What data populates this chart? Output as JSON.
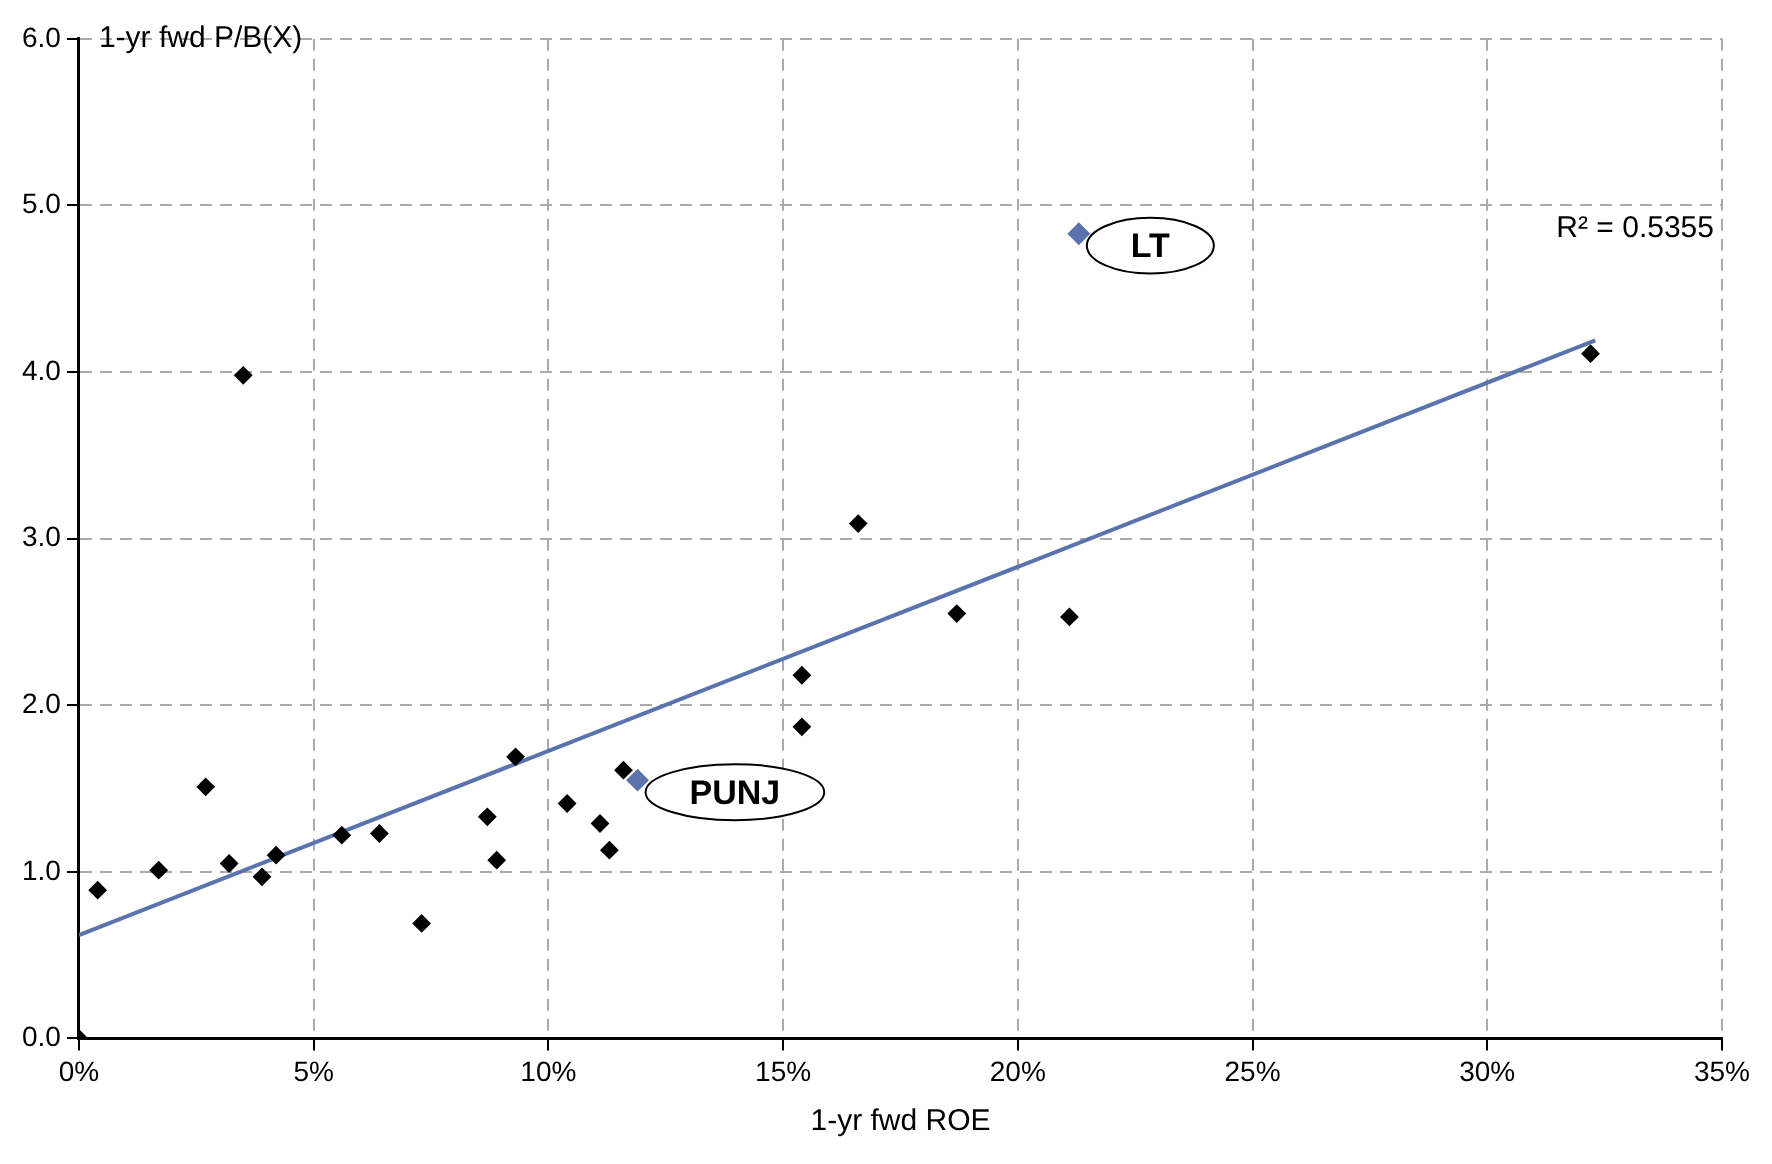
{
  "chart_data": {
    "type": "scatter",
    "xlabel": "1-yr fwd ROE",
    "ylabel": "1-yr fwd P/B(X)",
    "xlim": [
      0,
      35
    ],
    "xticks": [
      {
        "value": 0,
        "label": "0%"
      },
      {
        "value": 5,
        "label": "5%"
      },
      {
        "value": 10,
        "label": "10%"
      },
      {
        "value": 15,
        "label": "15%"
      },
      {
        "value": 20,
        "label": "20%"
      },
      {
        "value": 25,
        "label": "25%"
      },
      {
        "value": 30,
        "label": "30%"
      },
      {
        "value": 35,
        "label": "35%"
      }
    ],
    "ylim": [
      0,
      6
    ],
    "yticks": [
      {
        "value": 0,
        "label": "0.0"
      },
      {
        "value": 1,
        "label": "1.0"
      },
      {
        "value": 2,
        "label": "2.0"
      },
      {
        "value": 3,
        "label": "3.0"
      },
      {
        "value": 4,
        "label": "4.0"
      },
      {
        "value": 5,
        "label": "5.0"
      },
      {
        "value": 6,
        "label": "6.0"
      }
    ],
    "grid": true,
    "marker": "diamond",
    "line_style": "dashed",
    "series": [
      {
        "type": "scatter",
        "color": "#000000",
        "x": [
          0,
          0.4,
          1.7,
          2.7,
          3.2,
          3.5,
          3.9,
          4.2,
          5.6,
          6.4,
          7.3,
          8.7,
          8.9,
          9.3,
          10.4,
          11.1,
          11.3,
          11.6,
          15.4,
          15.4,
          16.6,
          18.7,
          21.1,
          32.2
        ],
        "values": [
          0,
          0.89,
          1.01,
          1.51,
          1.05,
          3.98,
          0.97,
          1.1,
          1.22,
          1.23,
          0.69,
          1.33,
          1.07,
          1.69,
          1.41,
          1.29,
          1.13,
          1.61,
          2.18,
          1.87,
          3.09,
          2.55,
          2.53,
          4.11
        ]
      },
      {
        "type": "scatter",
        "color": "#5b73ad",
        "x": [
          11.9,
          21.3
        ],
        "values": [
          1.55,
          4.83
        ]
      },
      {
        "type": "line",
        "color": "#5b73ad",
        "marker": "none",
        "line_style": "solid",
        "x": [
          0,
          32.3
        ],
        "values": [
          0.62,
          4.19
        ]
      }
    ],
    "annotations": [
      {
        "text": "PUNJ",
        "x": 11.9,
        "y": 1.55
      },
      {
        "text": "LT",
        "x": 21.3,
        "y": 4.83
      },
      "R² = 0.5355"
    ]
  }
}
